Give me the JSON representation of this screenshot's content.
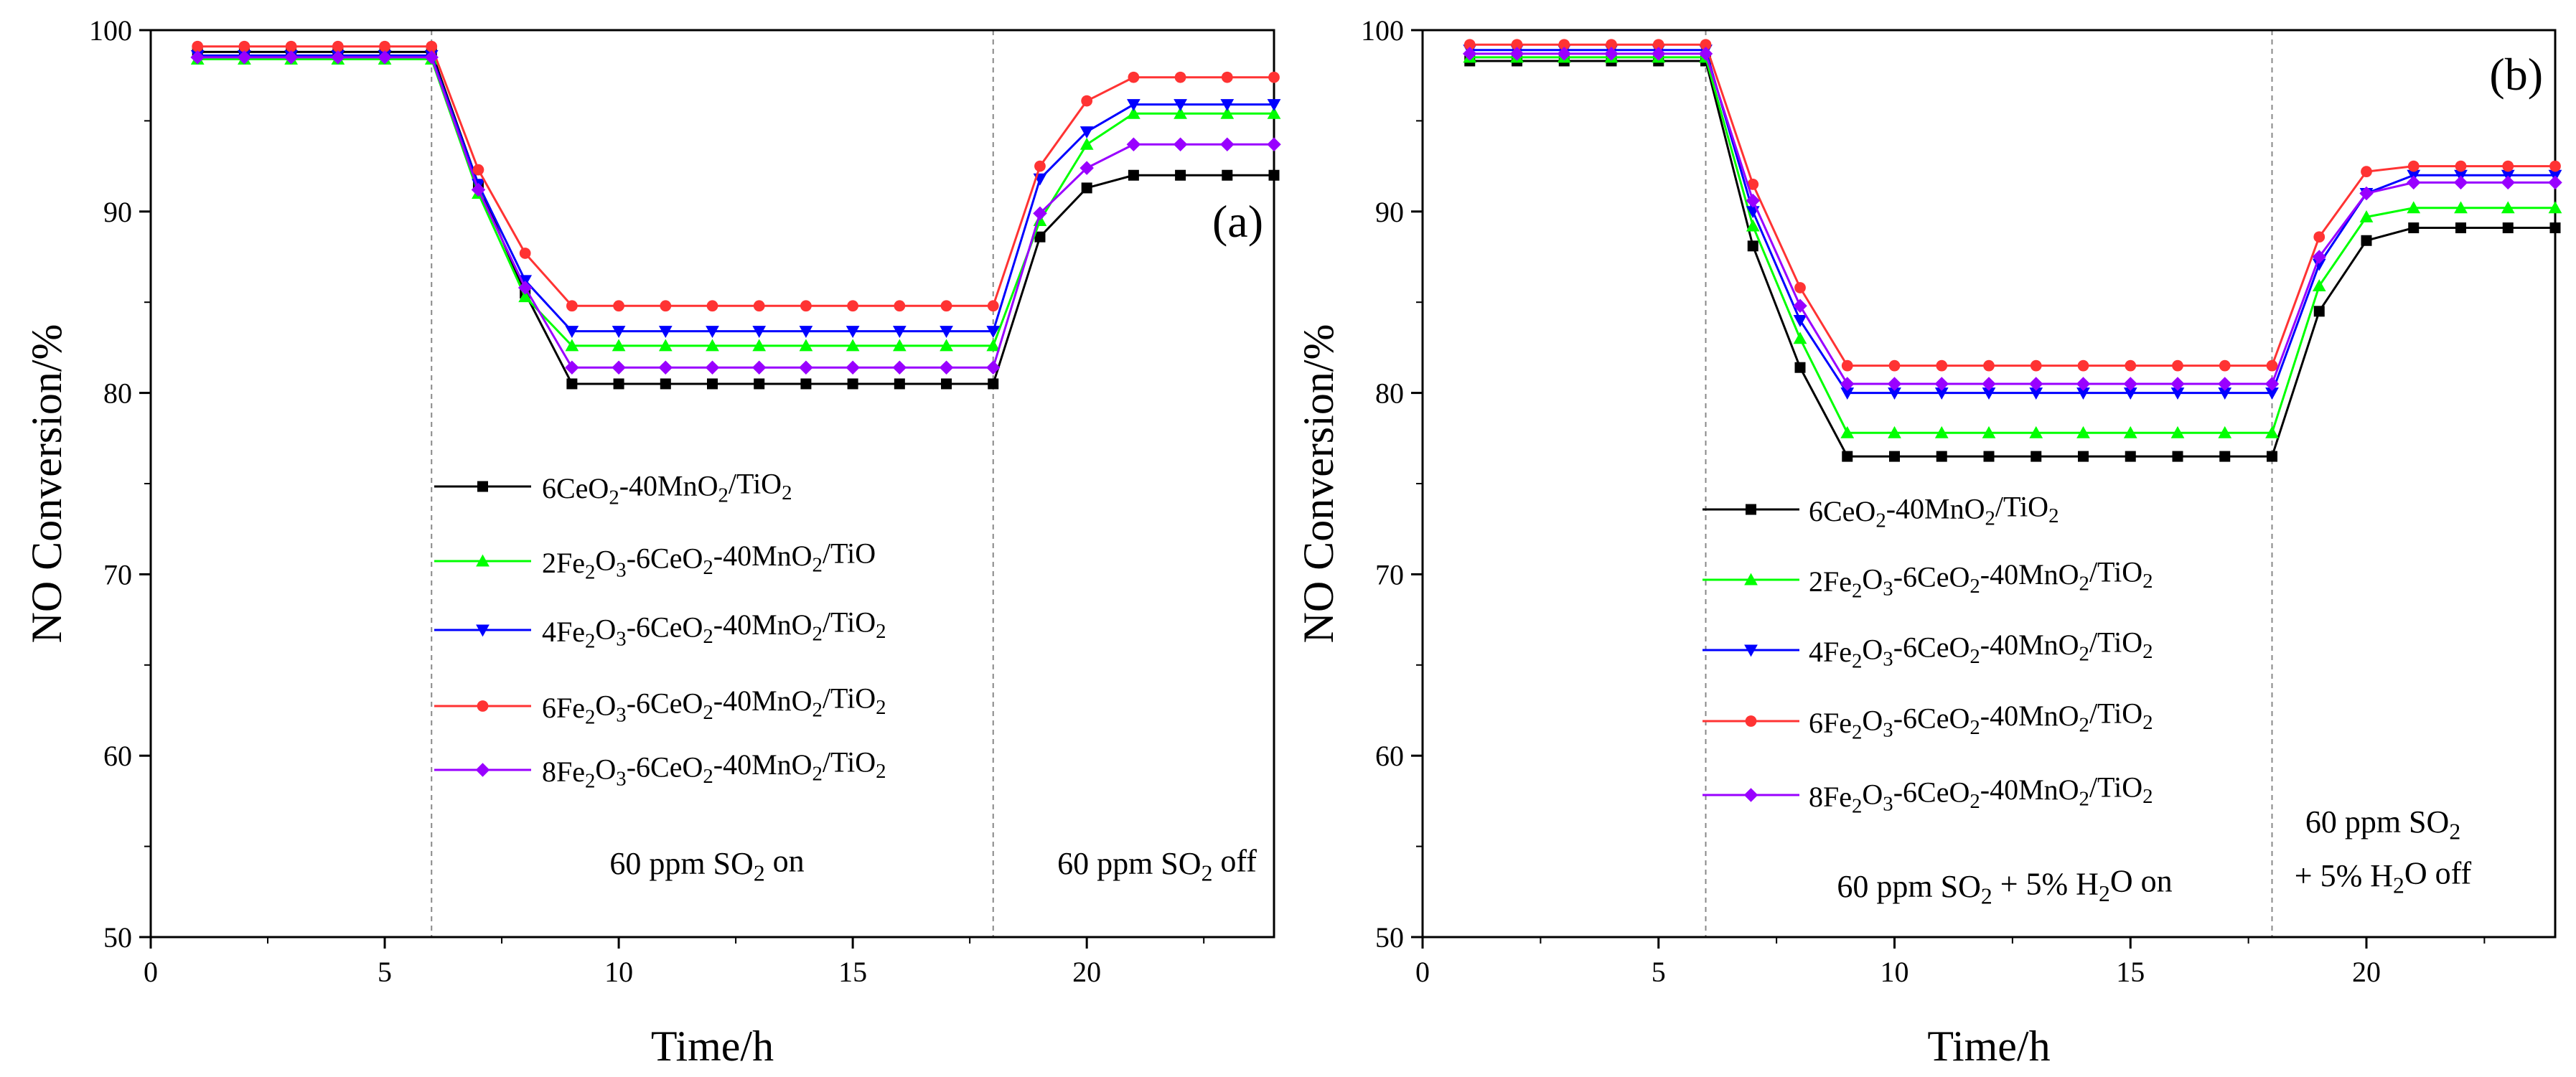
{
  "chart_data": [
    {
      "type": "line",
      "panel_label": "(a)",
      "xlabel": "Time/h",
      "ylabel": "NO Conversion/%",
      "xlim": [
        0,
        24
      ],
      "ylim": [
        50,
        100
      ],
      "xticks": [
        0,
        5,
        10,
        15,
        20
      ],
      "yticks": [
        50,
        60,
        70,
        80,
        90,
        100
      ],
      "x": [
        1,
        2,
        3,
        4,
        5,
        6,
        7,
        8,
        9,
        10,
        11,
        12,
        13,
        14,
        15,
        16,
        17,
        18,
        19,
        20,
        21,
        22,
        23,
        24
      ],
      "phase_boundaries": [
        6,
        18
      ],
      "annotations": [
        {
          "id": "on",
          "text": "60 ppm SO2 on",
          "parts": [
            [
              "60 ppm SO"
            ],
            [
              "2",
              "sub"
            ],
            [
              " on"
            ]
          ]
        },
        {
          "id": "off",
          "text": "60 ppm SO2 off",
          "parts": [
            [
              "60 ppm SO"
            ],
            [
              "2",
              "sub"
            ],
            [
              " off"
            ]
          ]
        }
      ],
      "series": [
        {
          "name": "6CeO2-40MnO2/TiO2",
          "parts": [
            [
              "6CeO"
            ],
            [
              "2",
              "sub"
            ],
            [
              "-40MnO"
            ],
            [
              "2",
              "sub"
            ],
            [
              "/TiO"
            ],
            [
              "2",
              "sub"
            ]
          ],
          "color": "#000000",
          "marker": "square",
          "values": [
            98.8,
            98.8,
            98.8,
            98.8,
            98.8,
            98.8,
            91.5,
            85.5,
            80.5,
            80.5,
            80.5,
            80.5,
            80.5,
            80.5,
            80.5,
            80.5,
            80.5,
            80.5,
            88.6,
            91.3,
            92.0,
            92.0,
            92.0,
            92.0
          ]
        },
        {
          "name": "2Fe2O3-6CeO2-40MnO2/TiO",
          "parts": [
            [
              "2Fe"
            ],
            [
              "2",
              "sub"
            ],
            [
              "O"
            ],
            [
              "3",
              "sub"
            ],
            [
              "-6CeO"
            ],
            [
              "2",
              "sub"
            ],
            [
              "-40MnO"
            ],
            [
              "2",
              "sub"
            ],
            [
              "/TiO"
            ]
          ],
          "color": "#00ff00",
          "marker": "triangle-up",
          "values": [
            98.4,
            98.4,
            98.4,
            98.4,
            98.4,
            98.4,
            91.0,
            85.3,
            82.6,
            82.6,
            82.6,
            82.6,
            82.6,
            82.6,
            82.6,
            82.6,
            82.6,
            82.6,
            89.5,
            93.7,
            95.4,
            95.4,
            95.4,
            95.4
          ]
        },
        {
          "name": "4Fe2O3-6CeO2-40MnO2/TiO2",
          "parts": [
            [
              "4Fe"
            ],
            [
              "2",
              "sub"
            ],
            [
              "O"
            ],
            [
              "3",
              "sub"
            ],
            [
              "-6CeO"
            ],
            [
              "2",
              "sub"
            ],
            [
              "-40MnO"
            ],
            [
              "2",
              "sub"
            ],
            [
              "/TiO"
            ],
            [
              "2",
              "sub"
            ]
          ],
          "color": "#0000ff",
          "marker": "triangle-down",
          "values": [
            98.6,
            98.6,
            98.6,
            98.6,
            98.6,
            98.6,
            91.5,
            86.2,
            83.4,
            83.4,
            83.4,
            83.4,
            83.4,
            83.4,
            83.4,
            83.4,
            83.4,
            83.4,
            91.8,
            94.4,
            95.9,
            95.9,
            95.9,
            95.9
          ]
        },
        {
          "name": "6Fe2O3-6CeO2-40MnO2/TiO2",
          "parts": [
            [
              "6Fe"
            ],
            [
              "2",
              "sub"
            ],
            [
              "O"
            ],
            [
              "3",
              "sub"
            ],
            [
              "-6CeO"
            ],
            [
              "2",
              "sub"
            ],
            [
              "-40MnO"
            ],
            [
              "2",
              "sub"
            ],
            [
              "/TiO"
            ],
            [
              "2",
              "sub"
            ]
          ],
          "color": "#ff3333",
          "marker": "circle",
          "values": [
            99.1,
            99.1,
            99.1,
            99.1,
            99.1,
            99.1,
            92.3,
            87.7,
            84.8,
            84.8,
            84.8,
            84.8,
            84.8,
            84.8,
            84.8,
            84.8,
            84.8,
            84.8,
            92.5,
            96.1,
            97.4,
            97.4,
            97.4,
            97.4
          ]
        },
        {
          "name": "8Fe2O3-6CeO2-40MnO2/TiO2",
          "parts": [
            [
              "8Fe"
            ],
            [
              "2",
              "sub"
            ],
            [
              "O"
            ],
            [
              "3",
              "sub"
            ],
            [
              "-6CeO"
            ],
            [
              "2",
              "sub"
            ],
            [
              "-40MnO"
            ],
            [
              "2",
              "sub"
            ],
            [
              "/TiO"
            ],
            [
              "2",
              "sub"
            ]
          ],
          "color": "#9900ff",
          "marker": "diamond",
          "values": [
            98.5,
            98.5,
            98.5,
            98.5,
            98.5,
            98.5,
            91.2,
            85.8,
            81.4,
            81.4,
            81.4,
            81.4,
            81.4,
            81.4,
            81.4,
            81.4,
            81.4,
            81.4,
            89.9,
            92.4,
            93.7,
            93.7,
            93.7,
            93.7
          ]
        }
      ]
    },
    {
      "type": "line",
      "panel_label": "(b)",
      "xlabel": "Time/h",
      "ylabel": "NO Conversion/%",
      "xlim": [
        0,
        24
      ],
      "ylim": [
        50,
        100
      ],
      "xticks": [
        0,
        5,
        10,
        15,
        20
      ],
      "yticks": [
        50,
        60,
        70,
        80,
        90,
        100
      ],
      "x": [
        1,
        2,
        3,
        4,
        5,
        6,
        7,
        8,
        9,
        10,
        11,
        12,
        13,
        14,
        15,
        16,
        17,
        18,
        19,
        20,
        21,
        22,
        23,
        24
      ],
      "phase_boundaries": [
        6,
        18
      ],
      "annotations": [
        {
          "id": "on",
          "text": "60 ppm SO2 + 5% H2O on",
          "parts": [
            [
              "60 ppm SO"
            ],
            [
              "2",
              "sub"
            ],
            [
              " + 5% H"
            ],
            [
              "2",
              "sub"
            ],
            [
              "O on"
            ]
          ]
        },
        {
          "id": "off1",
          "text": "60 ppm SO2",
          "parts": [
            [
              "60 ppm SO"
            ],
            [
              "2",
              "sub"
            ]
          ]
        },
        {
          "id": "off2",
          "text": "+ 5% H2O off",
          "parts": [
            [
              "+ 5% H"
            ],
            [
              "2",
              "sub"
            ],
            [
              "O off"
            ]
          ]
        }
      ],
      "series": [
        {
          "name": "6CeO2-40MnO2/TiO2",
          "parts": [
            [
              "6CeO"
            ],
            [
              "2",
              "sub"
            ],
            [
              "-40MnO"
            ],
            [
              "2",
              "sub"
            ],
            [
              "/TiO"
            ],
            [
              "2",
              "sub"
            ]
          ],
          "color": "#000000",
          "marker": "square",
          "values": [
            98.3,
            98.3,
            98.3,
            98.3,
            98.3,
            98.3,
            88.1,
            81.4,
            76.5,
            76.5,
            76.5,
            76.5,
            76.5,
            76.5,
            76.5,
            76.5,
            76.5,
            76.5,
            84.5,
            88.4,
            89.1,
            89.1,
            89.1,
            89.1
          ]
        },
        {
          "name": "2Fe2O3-6CeO2-40MnO2/TiO2",
          "parts": [
            [
              "2Fe"
            ],
            [
              "2",
              "sub"
            ],
            [
              "O"
            ],
            [
              "3",
              "sub"
            ],
            [
              "-6CeO"
            ],
            [
              "2",
              "sub"
            ],
            [
              "-40MnO"
            ],
            [
              "2",
              "sub"
            ],
            [
              "/TiO"
            ],
            [
              "2",
              "sub"
            ]
          ],
          "color": "#00ff00",
          "marker": "triangle-up",
          "values": [
            98.5,
            98.5,
            98.5,
            98.5,
            98.5,
            98.5,
            89.2,
            83.0,
            77.8,
            77.8,
            77.8,
            77.8,
            77.8,
            77.8,
            77.8,
            77.8,
            77.8,
            77.8,
            85.9,
            89.7,
            90.2,
            90.2,
            90.2,
            90.2
          ]
        },
        {
          "name": "4Fe2O3-6CeO2-40MnO2/TiO2",
          "parts": [
            [
              "4Fe"
            ],
            [
              "2",
              "sub"
            ],
            [
              "O"
            ],
            [
              "3",
              "sub"
            ],
            [
              "-6CeO"
            ],
            [
              "2",
              "sub"
            ],
            [
              "-40MnO"
            ],
            [
              "2",
              "sub"
            ],
            [
              "/TiO"
            ],
            [
              "2",
              "sub"
            ]
          ],
          "color": "#0000ff",
          "marker": "triangle-down",
          "values": [
            98.9,
            98.9,
            98.9,
            98.9,
            98.9,
            98.9,
            90.0,
            84.0,
            80.0,
            80.0,
            80.0,
            80.0,
            80.0,
            80.0,
            80.0,
            80.0,
            80.0,
            80.0,
            87.1,
            91.0,
            92.0,
            92.0,
            92.0,
            92.0
          ]
        },
        {
          "name": "6Fe2O3-6CeO2-40MnO2/TiO2",
          "parts": [
            [
              "6Fe"
            ],
            [
              "2",
              "sub"
            ],
            [
              "O"
            ],
            [
              "3",
              "sub"
            ],
            [
              "-6CeO"
            ],
            [
              "2",
              "sub"
            ],
            [
              "-40MnO"
            ],
            [
              "2",
              "sub"
            ],
            [
              "/TiO"
            ],
            [
              "2",
              "sub"
            ]
          ],
          "color": "#ff3333",
          "marker": "circle",
          "values": [
            99.2,
            99.2,
            99.2,
            99.2,
            99.2,
            99.2,
            91.5,
            85.8,
            81.5,
            81.5,
            81.5,
            81.5,
            81.5,
            81.5,
            81.5,
            81.5,
            81.5,
            81.5,
            88.6,
            92.2,
            92.5,
            92.5,
            92.5,
            92.5
          ]
        },
        {
          "name": "8Fe2O3-6CeO2-40MnO2/TiO2",
          "parts": [
            [
              "8Fe"
            ],
            [
              "2",
              "sub"
            ],
            [
              "O"
            ],
            [
              "3",
              "sub"
            ],
            [
              "-6CeO"
            ],
            [
              "2",
              "sub"
            ],
            [
              "-40MnO"
            ],
            [
              "2",
              "sub"
            ],
            [
              "/TiO"
            ],
            [
              "2",
              "sub"
            ]
          ],
          "color": "#9900ff",
          "marker": "diamond",
          "values": [
            98.7,
            98.7,
            98.7,
            98.7,
            98.7,
            98.7,
            90.6,
            84.8,
            80.5,
            80.5,
            80.5,
            80.5,
            80.5,
            80.5,
            80.5,
            80.5,
            80.5,
            80.5,
            87.5,
            91.0,
            91.6,
            91.6,
            91.6,
            91.6
          ]
        }
      ]
    }
  ]
}
